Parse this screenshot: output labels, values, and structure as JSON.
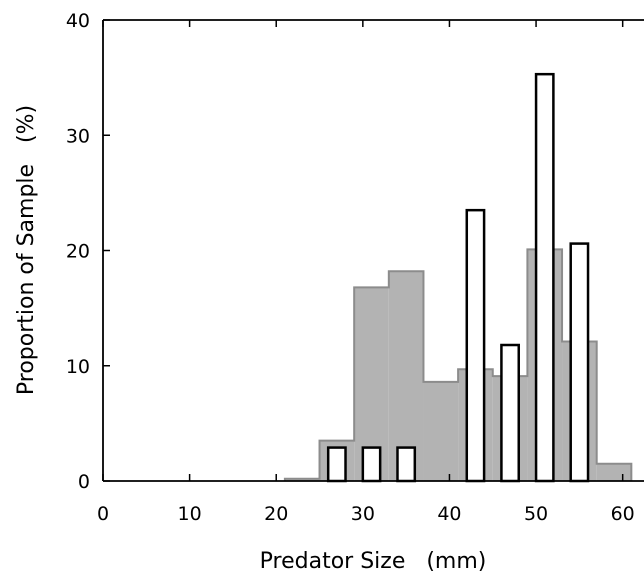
{
  "chart_data": {
    "type": "bar",
    "xlabel": "Predator Size   (mm)",
    "ylabel": "Proportion of Sample   (%)",
    "xlim": [
      0,
      62
    ],
    "ylim": [
      0,
      40
    ],
    "x_ticks": [
      0,
      10,
      20,
      30,
      40,
      50,
      60
    ],
    "y_ticks": [
      0,
      10,
      20,
      30,
      40
    ],
    "grid": false,
    "colors": {
      "gray_fill": "#b3b3b3",
      "gray_line": "#8c8c8c",
      "bar_fill": "#ffffff",
      "bar_stroke": "#000000"
    },
    "series": [
      {
        "style": "filled step histogram",
        "bins": [
          {
            "x0": 21,
            "x1": 25,
            "value": 0.2
          },
          {
            "x0": 25,
            "x1": 29,
            "value": 3.5
          },
          {
            "x0": 29,
            "x1": 33,
            "value": 16.8
          },
          {
            "x0": 33,
            "x1": 37,
            "value": 18.2
          },
          {
            "x0": 37,
            "x1": 41,
            "value": 8.6
          },
          {
            "x0": 41,
            "x1": 45,
            "value": 9.7
          },
          {
            "x0": 45,
            "x1": 49,
            "value": 9.1
          },
          {
            "x0": 49,
            "x1": 53,
            "value": 20.1
          },
          {
            "x0": 53,
            "x1": 57,
            "value": 12.1
          },
          {
            "x0": 57,
            "x1": 61,
            "value": 1.5
          }
        ]
      },
      {
        "style": "open bars",
        "bins": [
          {
            "x0": 26,
            "x1": 28,
            "value": 2.9
          },
          {
            "x0": 30,
            "x1": 32,
            "value": 2.9
          },
          {
            "x0": 34,
            "x1": 36,
            "value": 2.9
          },
          {
            "x0": 42,
            "x1": 44,
            "value": 23.5
          },
          {
            "x0": 46,
            "x1": 48,
            "value": 11.8
          },
          {
            "x0": 50,
            "x1": 52,
            "value": 35.3
          },
          {
            "x0": 54,
            "x1": 56,
            "value": 20.6
          }
        ]
      }
    ]
  }
}
